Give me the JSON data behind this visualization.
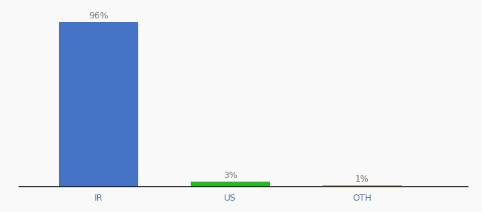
{
  "categories": [
    "IR",
    "US",
    "OTH"
  ],
  "values": [
    96,
    3,
    1
  ],
  "bar_colors": [
    "#4472c4",
    "#22bb22",
    "#f5a623"
  ],
  "value_labels": [
    "96%",
    "3%",
    "1%"
  ],
  "background_color": "#f9f9f9",
  "ylim": [
    0,
    100
  ],
  "bar_width": 0.6,
  "label_fontsize": 9,
  "tick_fontsize": 9,
  "tick_color": "#5577aa",
  "label_color": "#777777",
  "x_positions": [
    1,
    2,
    3
  ],
  "xlim": [
    0.4,
    3.8
  ]
}
